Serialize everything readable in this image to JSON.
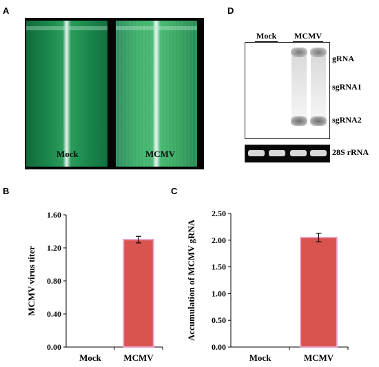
{
  "panels": {
    "A": {
      "letter": "A",
      "labels": [
        "Mock",
        "MCMV"
      ]
    },
    "B": {
      "letter": "B"
    },
    "C": {
      "letter": "C"
    },
    "D": {
      "letter": "D",
      "lane_groups": [
        "Mock",
        "MCMV"
      ],
      "band_labels": [
        "gRNA",
        "sgRNA1",
        "sgRNA2"
      ],
      "loading_label": "28S rRNA"
    }
  },
  "colors": {
    "bar_fill": "#d9534f",
    "bar_edge": "#e9a3c9",
    "leaf_mock": "#1f8a4c",
    "leaf_mcmv": "#33a857"
  },
  "chart_data": [
    {
      "type": "bar",
      "categories": [
        "Mock",
        "MCMV"
      ],
      "values": [
        0.0,
        1.3
      ],
      "errors": [
        0.0,
        0.04
      ],
      "ylabel": "MCMV  virus titer",
      "ylim": [
        0.0,
        1.6
      ],
      "yticks": [
        "0.00",
        "0.40",
        "0.80",
        "1.20",
        "1.60"
      ]
    },
    {
      "type": "bar",
      "categories": [
        "Mock",
        "MCMV"
      ],
      "values": [
        0.0,
        2.05
      ],
      "errors": [
        0.0,
        0.08
      ],
      "ylabel": "Accumulation of MCMV  gRNA",
      "ylim": [
        0.0,
        2.5
      ],
      "yticks": [
        "0.00",
        "0.50",
        "1.00",
        "1.50",
        "2.00",
        "2.50"
      ]
    }
  ]
}
